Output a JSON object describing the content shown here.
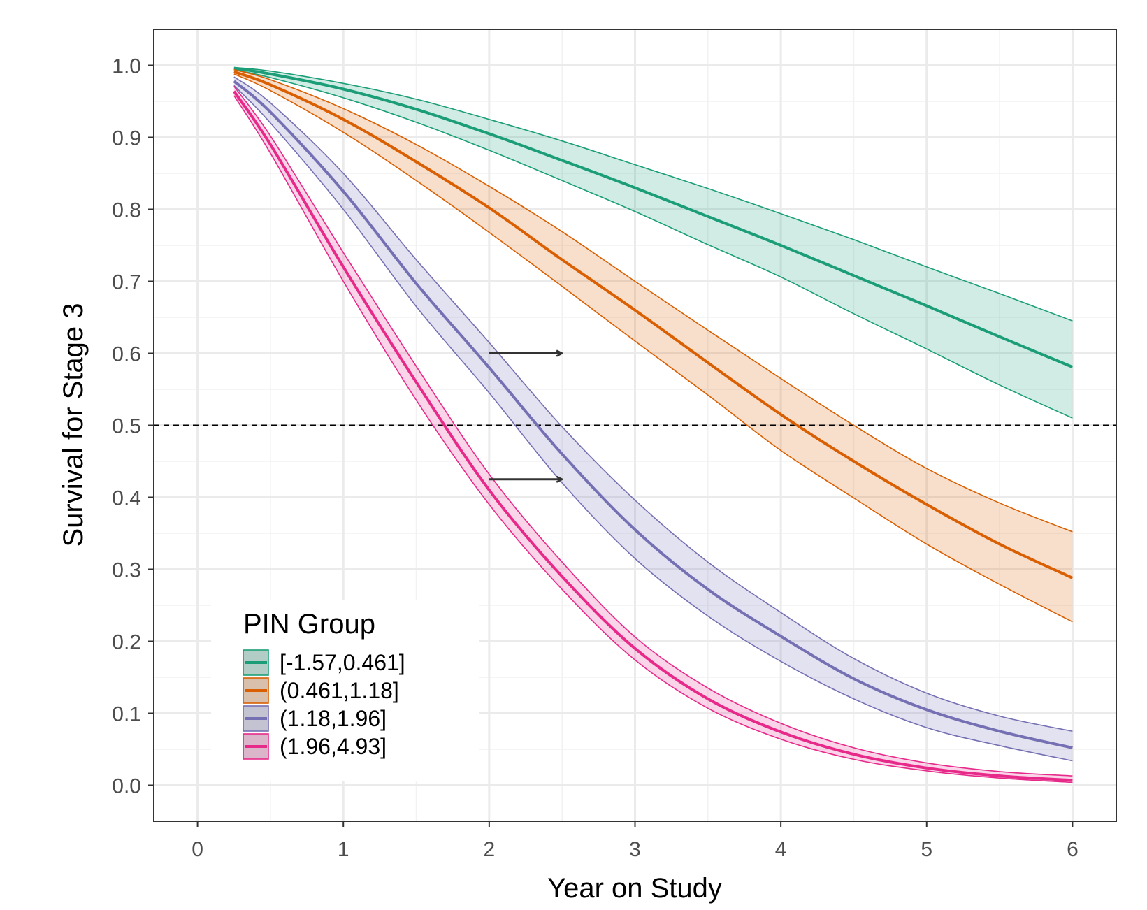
{
  "chart_data": {
    "type": "line",
    "xlabel": "Year on Study",
    "ylabel": "Survival for Stage 3",
    "xlim": [
      -0.3,
      6.3
    ],
    "ylim": [
      -0.05,
      1.05
    ],
    "x_ticks": [
      "0",
      "1",
      "2",
      "3",
      "4",
      "5",
      "6"
    ],
    "y_ticks": [
      "0.0",
      "0.1",
      "0.2",
      "0.3",
      "0.4",
      "0.5",
      "0.6",
      "0.7",
      "0.8",
      "0.9",
      "1.0"
    ],
    "grid": true,
    "reference_line": {
      "y": 0.5,
      "style": "dashed"
    },
    "x": [
      0.25,
      0.5,
      1,
      1.5,
      2,
      2.5,
      3,
      3.5,
      4,
      4.5,
      5,
      5.5,
      6
    ],
    "legend": {
      "title": "PIN Group",
      "position": "bottom-left"
    },
    "series": [
      {
        "name": "[-1.57,0.461]",
        "color": "#1b9e77",
        "values": [
          0.996,
          0.988,
          0.967,
          0.939,
          0.905,
          0.868,
          0.83,
          0.79,
          0.75,
          0.708,
          0.666,
          0.623,
          0.581
        ],
        "lower": [
          0.994,
          0.983,
          0.955,
          0.921,
          0.882,
          0.84,
          0.797,
          0.751,
          0.706,
          0.655,
          0.606,
          0.556,
          0.51
        ],
        "upper": [
          0.997,
          0.992,
          0.975,
          0.953,
          0.925,
          0.895,
          0.862,
          0.829,
          0.794,
          0.758,
          0.72,
          0.683,
          0.645
        ]
      },
      {
        "name": "(0.461,1.18]",
        "color": "#d95f02",
        "values": [
          0.991,
          0.973,
          0.925,
          0.866,
          0.802,
          0.73,
          0.66,
          0.587,
          0.515,
          0.45,
          0.39,
          0.335,
          0.288
        ],
        "lower": [
          0.988,
          0.965,
          0.907,
          0.84,
          0.768,
          0.693,
          0.617,
          0.542,
          0.465,
          0.399,
          0.335,
          0.279,
          0.227
        ],
        "upper": [
          0.994,
          0.98,
          0.94,
          0.89,
          0.832,
          0.769,
          0.7,
          0.632,
          0.565,
          0.5,
          0.44,
          0.392,
          0.352
        ]
      },
      {
        "name": "(1.18,1.96]",
        "color": "#7570b3",
        "values": [
          0.978,
          0.935,
          0.825,
          0.697,
          0.58,
          0.46,
          0.355,
          0.272,
          0.207,
          0.148,
          0.105,
          0.075,
          0.052
        ],
        "lower": [
          0.972,
          0.92,
          0.8,
          0.665,
          0.545,
          0.42,
          0.315,
          0.235,
          0.172,
          0.12,
          0.08,
          0.055,
          0.034
        ],
        "upper": [
          0.984,
          0.948,
          0.85,
          0.73,
          0.615,
          0.498,
          0.396,
          0.31,
          0.24,
          0.176,
          0.128,
          0.096,
          0.075
        ]
      },
      {
        "name": "(1.96,4.93]",
        "color": "#e7298a",
        "values": [
          0.964,
          0.89,
          0.72,
          0.56,
          0.41,
          0.29,
          0.19,
          0.12,
          0.074,
          0.043,
          0.024,
          0.013,
          0.007
        ],
        "lower": [
          0.958,
          0.878,
          0.7,
          0.535,
          0.39,
          0.272,
          0.174,
          0.107,
          0.064,
          0.036,
          0.02,
          0.01,
          0.004
        ],
        "upper": [
          0.971,
          0.902,
          0.74,
          0.582,
          0.432,
          0.31,
          0.206,
          0.135,
          0.086,
          0.052,
          0.031,
          0.019,
          0.013
        ]
      }
    ],
    "annotations": [
      {
        "type": "arrow",
        "x_start": 2.0,
        "x_end": 2.5,
        "y": 0.6
      },
      {
        "type": "arrow",
        "x_start": 2.0,
        "x_end": 2.5,
        "y": 0.425
      }
    ]
  }
}
